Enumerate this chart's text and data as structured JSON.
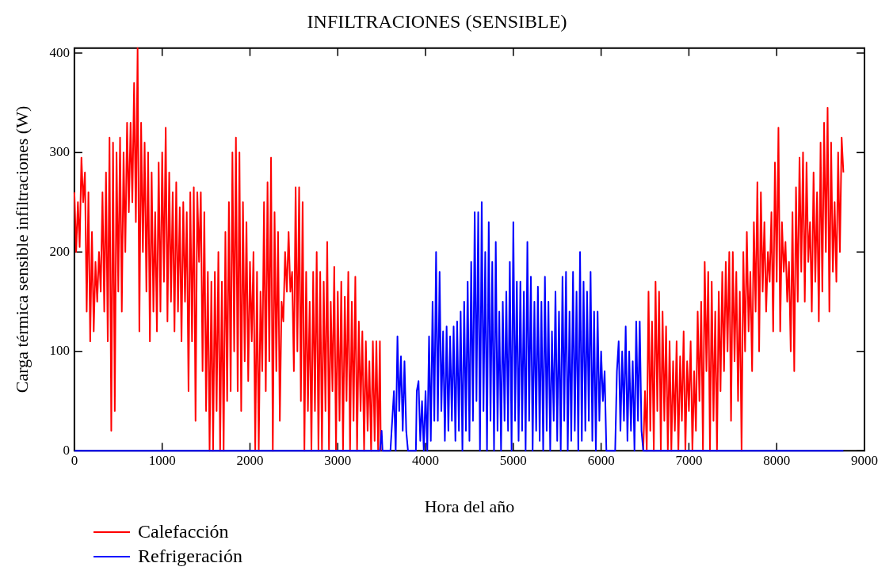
{
  "chart_data": {
    "type": "line",
    "title": "INFILTRACIONES (SENSIBLE)",
    "xlabel": "Hora del año",
    "ylabel": "Carga térmica sensible infiltraciones (W)",
    "xlim": [
      0,
      9000
    ],
    "xticks": [
      0,
      1000,
      2000,
      3000,
      4000,
      5000,
      6000,
      7000,
      8000,
      9000
    ],
    "ylim": [
      0,
      405
    ],
    "yticks": [
      0,
      100,
      200,
      300,
      400
    ],
    "tick_labels": "xy",
    "grid": false,
    "legend": "bottom left",
    "marker": "none",
    "line_style": "solid",
    "series": [
      {
        "name": "Calefacción",
        "color": "#ff0000",
        "x": [
          0,
          20,
          40,
          60,
          80,
          100,
          120,
          140,
          160,
          180,
          200,
          220,
          240,
          260,
          280,
          300,
          320,
          340,
          360,
          380,
          400,
          420,
          440,
          460,
          480,
          500,
          520,
          540,
          560,
          580,
          600,
          620,
          640,
          660,
          680,
          700,
          720,
          740,
          760,
          780,
          800,
          820,
          840,
          860,
          880,
          900,
          920,
          940,
          960,
          980,
          1000,
          1020,
          1040,
          1060,
          1080,
          1100,
          1120,
          1140,
          1160,
          1180,
          1200,
          1220,
          1240,
          1260,
          1280,
          1300,
          1320,
          1340,
          1360,
          1380,
          1400,
          1420,
          1440,
          1460,
          1480,
          1500,
          1520,
          1540,
          1560,
          1580,
          1600,
          1620,
          1640,
          1660,
          1680,
          1700,
          1720,
          1740,
          1760,
          1780,
          1800,
          1820,
          1840,
          1860,
          1880,
          1900,
          1920,
          1940,
          1960,
          1980,
          2000,
          2020,
          2040,
          2060,
          2080,
          2100,
          2120,
          2140,
          2160,
          2180,
          2200,
          2220,
          2240,
          2260,
          2280,
          2300,
          2320,
          2340,
          2360,
          2380,
          2400,
          2420,
          2440,
          2460,
          2480,
          2500,
          2520,
          2540,
          2560,
          2580,
          2600,
          2620,
          2640,
          2660,
          2680,
          2700,
          2720,
          2740,
          2760,
          2780,
          2800,
          2820,
          2840,
          2860,
          2880,
          2900,
          2920,
          2940,
          2960,
          2980,
          3000,
          3020,
          3040,
          3060,
          3080,
          3100,
          3120,
          3140,
          3160,
          3180,
          3200,
          3220,
          3240,
          3260,
          3280,
          3300,
          3320,
          3340,
          3360,
          3380,
          3400,
          3420,
          3440,
          3460,
          3480,
          3490,
          5000,
          6480,
          6500,
          6520,
          6540,
          6560,
          6580,
          6600,
          6620,
          6640,
          6660,
          6680,
          6700,
          6720,
          6740,
          6760,
          6780,
          6800,
          6820,
          6840,
          6860,
          6880,
          6900,
          6920,
          6940,
          6960,
          6980,
          7000,
          7020,
          7040,
          7060,
          7080,
          7100,
          7120,
          7140,
          7160,
          7180,
          7200,
          7220,
          7240,
          7260,
          7280,
          7300,
          7320,
          7340,
          7360,
          7380,
          7400,
          7420,
          7440,
          7460,
          7480,
          7500,
          7520,
          7540,
          7560,
          7580,
          7600,
          7620,
          7640,
          7660,
          7680,
          7700,
          7720,
          7740,
          7760,
          7780,
          7800,
          7820,
          7840,
          7860,
          7880,
          7900,
          7920,
          7940,
          7960,
          7980,
          8000,
          8020,
          8040,
          8060,
          8080,
          8100,
          8120,
          8140,
          8160,
          8180,
          8200,
          8220,
          8240,
          8260,
          8280,
          8300,
          8320,
          8340,
          8360,
          8380,
          8400,
          8420,
          8440,
          8460,
          8480,
          8500,
          8520,
          8540,
          8560,
          8580,
          8600,
          8620,
          8640,
          8660,
          8680,
          8700,
          8720,
          8740,
          8760
        ],
        "values": [
          260,
          200,
          250,
          205,
          295,
          250,
          280,
          140,
          260,
          110,
          220,
          120,
          190,
          150,
          200,
          160,
          260,
          140,
          280,
          110,
          315,
          20,
          310,
          40,
          300,
          160,
          315,
          140,
          300,
          200,
          330,
          240,
          330,
          250,
          370,
          230,
          405,
          120,
          330,
          200,
          310,
          160,
          300,
          110,
          280,
          140,
          240,
          120,
          290,
          140,
          300,
          170,
          325,
          130,
          280,
          150,
          260,
          120,
          270,
          140,
          245,
          110,
          250,
          150,
          240,
          60,
          260,
          110,
          265,
          30,
          260,
          190,
          260,
          80,
          240,
          40,
          180,
          0,
          170,
          0,
          180,
          40,
          200,
          0,
          170,
          0,
          220,
          50,
          250,
          60,
          300,
          100,
          315,
          60,
          300,
          40,
          250,
          90,
          230,
          70,
          190,
          110,
          200,
          0,
          180,
          0,
          160,
          80,
          250,
          60,
          270,
          90,
          295,
          0,
          240,
          80,
          220,
          30,
          150,
          130,
          200,
          160,
          220,
          160,
          180,
          80,
          265,
          100,
          265,
          50,
          250,
          0,
          180,
          40,
          150,
          0,
          180,
          40,
          200,
          0,
          180,
          0,
          170,
          40,
          210,
          0,
          150,
          60,
          185,
          0,
          160,
          30,
          170,
          0,
          155,
          50,
          180,
          0,
          150,
          30,
          175,
          0,
          130,
          40,
          120,
          0,
          110,
          20,
          90,
          0,
          110,
          10,
          110,
          0,
          110,
          0,
          null,
          0,
          60,
          0,
          160,
          20,
          130,
          0,
          170,
          40,
          160,
          0,
          140,
          30,
          125,
          0,
          110,
          0,
          90,
          20,
          110,
          0,
          95,
          30,
          120,
          0,
          90,
          40,
          110,
          0,
          80,
          20,
          140,
          50,
          150,
          0,
          190,
          80,
          180,
          0,
          170,
          30,
          140,
          0,
          160,
          60,
          180,
          80,
          190,
          100,
          200,
          30,
          200,
          90,
          180,
          50,
          160,
          0,
          200,
          100,
          220,
          120,
          180,
          80,
          230,
          140,
          270,
          100,
          260,
          160,
          230,
          140,
          200,
          170,
          240,
          120,
          290,
          170,
          325,
          120,
          230,
          180,
          210,
          150,
          190,
          100,
          240,
          80,
          265,
          150,
          295,
          180,
          300,
          150,
          290,
          190,
          230,
          140,
          280,
          170,
          260,
          130,
          310,
          160,
          330,
          200,
          345,
          140,
          310,
          180,
          250,
          170,
          300,
          200,
          315,
          280
        ]
      },
      {
        "name": "Refrigeración",
        "color": "#0000ff",
        "x": [
          0,
          3480,
          3500,
          3510,
          3600,
          3620,
          3640,
          3660,
          3680,
          3700,
          3720,
          3740,
          3760,
          3780,
          3800,
          3890,
          3900,
          3920,
          3940,
          3960,
          3980,
          4000,
          4020,
          4040,
          4060,
          4080,
          4100,
          4120,
          4140,
          4160,
          4180,
          4200,
          4220,
          4240,
          4260,
          4280,
          4300,
          4320,
          4340,
          4360,
          4380,
          4400,
          4420,
          4440,
          4460,
          4480,
          4500,
          4520,
          4540,
          4560,
          4580,
          4600,
          4620,
          4640,
          4660,
          4680,
          4700,
          4720,
          4740,
          4760,
          4780,
          4800,
          4820,
          4840,
          4860,
          4880,
          4900,
          4920,
          4940,
          4960,
          4980,
          5000,
          5020,
          5040,
          5060,
          5080,
          5100,
          5120,
          5140,
          5160,
          5180,
          5200,
          5220,
          5240,
          5260,
          5280,
          5300,
          5320,
          5340,
          5360,
          5380,
          5400,
          5420,
          5440,
          5460,
          5480,
          5500,
          5520,
          5540,
          5560,
          5580,
          5600,
          5620,
          5640,
          5660,
          5680,
          5700,
          5720,
          5740,
          5760,
          5780,
          5800,
          5820,
          5840,
          5860,
          5880,
          5900,
          5920,
          5940,
          5960,
          5980,
          6000,
          6020,
          6040,
          6060,
          6100,
          6160,
          6180,
          6200,
          6220,
          6240,
          6260,
          6280,
          6300,
          6320,
          6340,
          6360,
          6380,
          6400,
          6420,
          6440,
          6460,
          6480,
          8760
        ],
        "values": [
          0,
          0,
          20,
          0,
          0,
          30,
          60,
          0,
          115,
          40,
          95,
          20,
          90,
          20,
          0,
          0,
          60,
          70,
          10,
          50,
          0,
          60,
          0,
          115,
          10,
          150,
          30,
          200,
          30,
          180,
          40,
          120,
          10,
          125,
          20,
          115,
          30,
          125,
          10,
          130,
          20,
          140,
          0,
          150,
          20,
          170,
          10,
          190,
          30,
          240,
          50,
          240,
          0,
          250,
          40,
          200,
          0,
          230,
          30,
          190,
          0,
          210,
          20,
          140,
          0,
          150,
          30,
          160,
          20,
          190,
          0,
          230,
          30,
          170,
          10,
          170,
          20,
          160,
          0,
          210,
          30,
          175,
          0,
          150,
          20,
          165,
          10,
          150,
          0,
          175,
          20,
          150,
          0,
          120,
          30,
          160,
          10,
          140,
          0,
          175,
          30,
          180,
          0,
          140,
          10,
          180,
          20,
          160,
          0,
          200,
          10,
          170,
          20,
          160,
          30,
          180,
          10,
          140,
          0,
          140,
          30,
          100,
          50,
          80,
          0,
          0,
          0,
          80,
          110,
          20,
          100,
          30,
          125,
          10,
          100,
          20,
          90,
          0,
          130,
          30,
          130,
          20,
          0,
          0
        ]
      }
    ]
  }
}
